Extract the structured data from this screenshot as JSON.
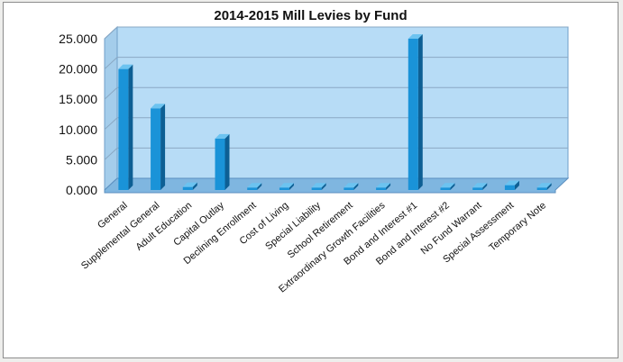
{
  "chart_data": {
    "type": "bar",
    "title": "2014-2015  Mill Levies by Fund",
    "xlabel": "",
    "ylabel": "",
    "ylim": [
      0,
      25
    ],
    "yticks": [
      0,
      5,
      10,
      15,
      20,
      25
    ],
    "ytick_labels": [
      "0.000",
      "5.000",
      "10.000",
      "15.000",
      "20.000",
      "25.000"
    ],
    "grid": true,
    "legend": "none",
    "categories": [
      "General",
      "Supplemental General",
      "Adult Education",
      "Capital Outlay",
      "Declining Enrollment",
      "Cost of Living",
      "Special Liability",
      "School Retirement",
      "Extraordinary Growth Facilities",
      "Bond and Interest #1",
      "Bond and Interest #2",
      "No Fund Warrant",
      "Special Assessment",
      "Temporary Note"
    ],
    "values": [
      20.0,
      13.5,
      0.5,
      8.5,
      0.4,
      0.4,
      0.4,
      0.4,
      0.4,
      25.0,
      0.4,
      0.4,
      0.8,
      0.4
    ],
    "colors": {
      "bar": "#1a93d8",
      "bar_dark": "#0d5f94",
      "bar_top": "#6cc3f0",
      "plot_bg": "#b7dcf6",
      "floor": "#7fb6e0",
      "grid": "#8aa8c4"
    }
  }
}
